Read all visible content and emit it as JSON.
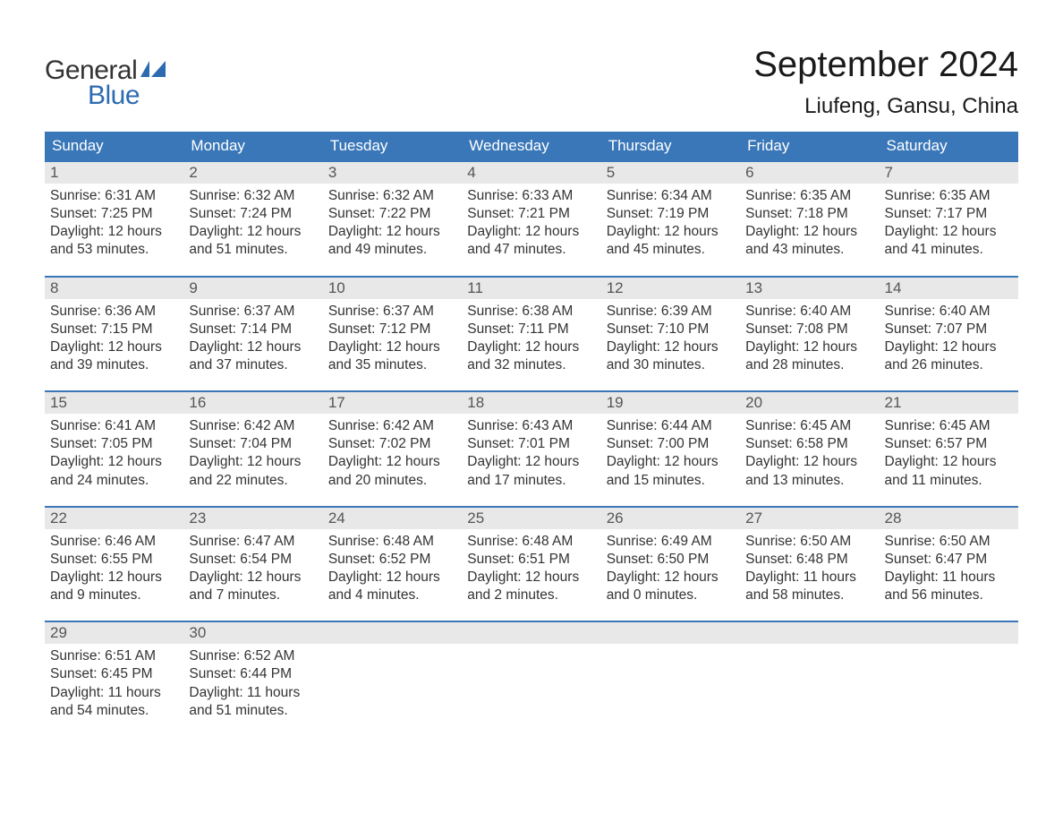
{
  "logo": {
    "text1": "General",
    "text2": "Blue",
    "accent_color": "#2d6bb0",
    "text_color": "#333333"
  },
  "title": "September 2024",
  "location": "Liufeng, Gansu, China",
  "weekday_header_bg": "#3a77b8",
  "weekday_header_fg": "#ffffff",
  "day_bar_bg": "#e8e8e8",
  "border_color": "#3a77b8",
  "font_family": "Arial, Helvetica, sans-serif",
  "title_fontsize": 40,
  "location_fontsize": 24,
  "weekday_fontsize": 17,
  "daynum_fontsize": 17,
  "detail_fontsize": 15.5,
  "weekdays": [
    "Sunday",
    "Monday",
    "Tuesday",
    "Wednesday",
    "Thursday",
    "Friday",
    "Saturday"
  ],
  "weeks": [
    [
      {
        "day": "1",
        "sunrise": "Sunrise: 6:31 AM",
        "sunset": "Sunset: 7:25 PM",
        "daylight": "Daylight: 12 hours and 53 minutes."
      },
      {
        "day": "2",
        "sunrise": "Sunrise: 6:32 AM",
        "sunset": "Sunset: 7:24 PM",
        "daylight": "Daylight: 12 hours and 51 minutes."
      },
      {
        "day": "3",
        "sunrise": "Sunrise: 6:32 AM",
        "sunset": "Sunset: 7:22 PM",
        "daylight": "Daylight: 12 hours and 49 minutes."
      },
      {
        "day": "4",
        "sunrise": "Sunrise: 6:33 AM",
        "sunset": "Sunset: 7:21 PM",
        "daylight": "Daylight: 12 hours and 47 minutes."
      },
      {
        "day": "5",
        "sunrise": "Sunrise: 6:34 AM",
        "sunset": "Sunset: 7:19 PM",
        "daylight": "Daylight: 12 hours and 45 minutes."
      },
      {
        "day": "6",
        "sunrise": "Sunrise: 6:35 AM",
        "sunset": "Sunset: 7:18 PM",
        "daylight": "Daylight: 12 hours and 43 minutes."
      },
      {
        "day": "7",
        "sunrise": "Sunrise: 6:35 AM",
        "sunset": "Sunset: 7:17 PM",
        "daylight": "Daylight: 12 hours and 41 minutes."
      }
    ],
    [
      {
        "day": "8",
        "sunrise": "Sunrise: 6:36 AM",
        "sunset": "Sunset: 7:15 PM",
        "daylight": "Daylight: 12 hours and 39 minutes."
      },
      {
        "day": "9",
        "sunrise": "Sunrise: 6:37 AM",
        "sunset": "Sunset: 7:14 PM",
        "daylight": "Daylight: 12 hours and 37 minutes."
      },
      {
        "day": "10",
        "sunrise": "Sunrise: 6:37 AM",
        "sunset": "Sunset: 7:12 PM",
        "daylight": "Daylight: 12 hours and 35 minutes."
      },
      {
        "day": "11",
        "sunrise": "Sunrise: 6:38 AM",
        "sunset": "Sunset: 7:11 PM",
        "daylight": "Daylight: 12 hours and 32 minutes."
      },
      {
        "day": "12",
        "sunrise": "Sunrise: 6:39 AM",
        "sunset": "Sunset: 7:10 PM",
        "daylight": "Daylight: 12 hours and 30 minutes."
      },
      {
        "day": "13",
        "sunrise": "Sunrise: 6:40 AM",
        "sunset": "Sunset: 7:08 PM",
        "daylight": "Daylight: 12 hours and 28 minutes."
      },
      {
        "day": "14",
        "sunrise": "Sunrise: 6:40 AM",
        "sunset": "Sunset: 7:07 PM",
        "daylight": "Daylight: 12 hours and 26 minutes."
      }
    ],
    [
      {
        "day": "15",
        "sunrise": "Sunrise: 6:41 AM",
        "sunset": "Sunset: 7:05 PM",
        "daylight": "Daylight: 12 hours and 24 minutes."
      },
      {
        "day": "16",
        "sunrise": "Sunrise: 6:42 AM",
        "sunset": "Sunset: 7:04 PM",
        "daylight": "Daylight: 12 hours and 22 minutes."
      },
      {
        "day": "17",
        "sunrise": "Sunrise: 6:42 AM",
        "sunset": "Sunset: 7:02 PM",
        "daylight": "Daylight: 12 hours and 20 minutes."
      },
      {
        "day": "18",
        "sunrise": "Sunrise: 6:43 AM",
        "sunset": "Sunset: 7:01 PM",
        "daylight": "Daylight: 12 hours and 17 minutes."
      },
      {
        "day": "19",
        "sunrise": "Sunrise: 6:44 AM",
        "sunset": "Sunset: 7:00 PM",
        "daylight": "Daylight: 12 hours and 15 minutes."
      },
      {
        "day": "20",
        "sunrise": "Sunrise: 6:45 AM",
        "sunset": "Sunset: 6:58 PM",
        "daylight": "Daylight: 12 hours and 13 minutes."
      },
      {
        "day": "21",
        "sunrise": "Sunrise: 6:45 AM",
        "sunset": "Sunset: 6:57 PM",
        "daylight": "Daylight: 12 hours and 11 minutes."
      }
    ],
    [
      {
        "day": "22",
        "sunrise": "Sunrise: 6:46 AM",
        "sunset": "Sunset: 6:55 PM",
        "daylight": "Daylight: 12 hours and 9 minutes."
      },
      {
        "day": "23",
        "sunrise": "Sunrise: 6:47 AM",
        "sunset": "Sunset: 6:54 PM",
        "daylight": "Daylight: 12 hours and 7 minutes."
      },
      {
        "day": "24",
        "sunrise": "Sunrise: 6:48 AM",
        "sunset": "Sunset: 6:52 PM",
        "daylight": "Daylight: 12 hours and 4 minutes."
      },
      {
        "day": "25",
        "sunrise": "Sunrise: 6:48 AM",
        "sunset": "Sunset: 6:51 PM",
        "daylight": "Daylight: 12 hours and 2 minutes."
      },
      {
        "day": "26",
        "sunrise": "Sunrise: 6:49 AM",
        "sunset": "Sunset: 6:50 PM",
        "daylight": "Daylight: 12 hours and 0 minutes."
      },
      {
        "day": "27",
        "sunrise": "Sunrise: 6:50 AM",
        "sunset": "Sunset: 6:48 PM",
        "daylight": "Daylight: 11 hours and 58 minutes."
      },
      {
        "day": "28",
        "sunrise": "Sunrise: 6:50 AM",
        "sunset": "Sunset: 6:47 PM",
        "daylight": "Daylight: 11 hours and 56 minutes."
      }
    ],
    [
      {
        "day": "29",
        "sunrise": "Sunrise: 6:51 AM",
        "sunset": "Sunset: 6:45 PM",
        "daylight": "Daylight: 11 hours and 54 minutes."
      },
      {
        "day": "30",
        "sunrise": "Sunrise: 6:52 AM",
        "sunset": "Sunset: 6:44 PM",
        "daylight": "Daylight: 11 hours and 51 minutes."
      },
      null,
      null,
      null,
      null,
      null
    ]
  ]
}
